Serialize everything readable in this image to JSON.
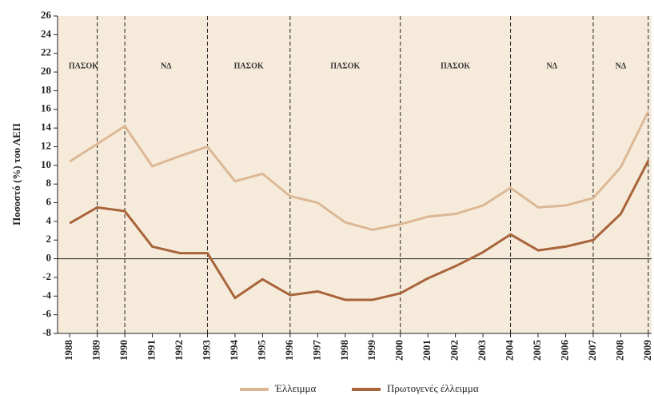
{
  "chart_data": {
    "type": "line",
    "y_label": "Ποσοστό (%) του ΑΕΠ",
    "x": [
      1988,
      1989,
      1990,
      1991,
      1992,
      1993,
      1994,
      1995,
      1996,
      1997,
      1998,
      1999,
      2000,
      2001,
      2002,
      2003,
      2004,
      2005,
      2006,
      2007,
      2008,
      2009
    ],
    "xlim": [
      1987.56,
      2009.12
    ],
    "xticks": [
      1988,
      1989,
      1990,
      1991,
      1992,
      1993,
      1994,
      1995,
      1996,
      1997,
      1998,
      1999,
      2000,
      2001,
      2002,
      2003,
      2004,
      2005,
      2006,
      2007,
      2008,
      2009
    ],
    "ylim": [
      -8,
      26
    ],
    "yticks": [
      -8,
      -6,
      -4,
      -2,
      0,
      2,
      4,
      6,
      8,
      10,
      12,
      14,
      16,
      18,
      20,
      22,
      24,
      26
    ],
    "background": "#f6ebda",
    "period_lines": [
      1989,
      1990,
      1993,
      1996,
      2000,
      2004,
      2007,
      2009
    ],
    "annotations": [
      {
        "label": "ΠΑΣΟΚ",
        "x_start": 1988,
        "x_end": 1989
      },
      {
        "label": "ΝΔ",
        "x_start": 1990,
        "x_end": 1993
      },
      {
        "label": "ΠΑΣΟΚ",
        "x_start": 1993,
        "x_end": 1996
      },
      {
        "label": "ΠΑΣΟΚ",
        "x_start": 1996,
        "x_end": 2000
      },
      {
        "label": "ΠΑΣΟΚ",
        "x_start": 2000,
        "x_end": 2004
      },
      {
        "label": "ΝΔ",
        "x_start": 2004,
        "x_end": 2007
      },
      {
        "label": "ΝΔ",
        "x_start": 2007,
        "x_end": 2009
      }
    ],
    "series": [
      {
        "name": "Έλλειμμα",
        "color": "#dcb896",
        "values": [
          10.4,
          12.3,
          14.2,
          9.9,
          11.0,
          12.0,
          8.3,
          9.1,
          6.7,
          6.0,
          3.9,
          3.1,
          3.7,
          4.5,
          4.8,
          5.7,
          7.6,
          5.5,
          5.7,
          6.5,
          9.8,
          15.8
        ]
      },
      {
        "name": "Πρωτογενές έλλειμμα",
        "color": "#a8643a",
        "values": [
          3.8,
          5.5,
          5.1,
          1.3,
          0.6,
          0.6,
          -4.2,
          -2.2,
          -3.9,
          -3.5,
          -4.4,
          -4.4,
          -3.7,
          -2.1,
          -0.8,
          0.7,
          2.6,
          0.9,
          1.3,
          2.0,
          4.8,
          10.5
        ]
      }
    ]
  }
}
